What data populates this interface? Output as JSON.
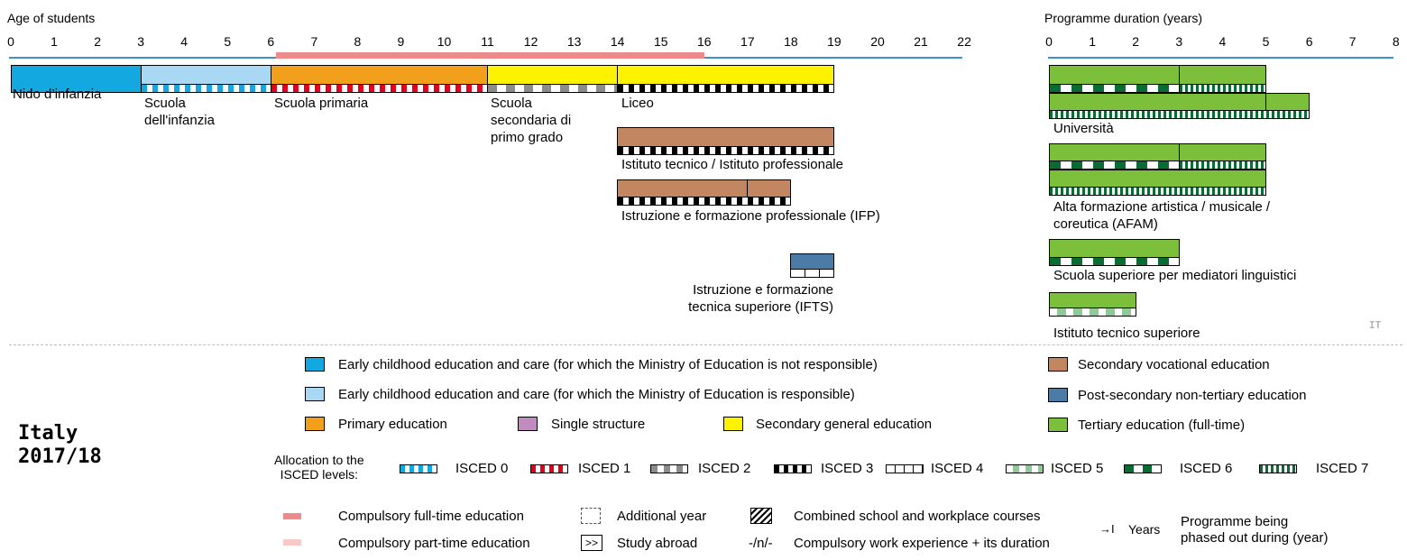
{
  "left_axis": {
    "title": "Age of students",
    "ticks": [
      "0",
      "1",
      "2",
      "3",
      "4",
      "5",
      "6",
      "7",
      "8",
      "9",
      "10",
      "11",
      "12",
      "13",
      "14",
      "15",
      "16",
      "17",
      "18",
      "19",
      "20",
      "21",
      "22"
    ]
  },
  "right_axis": {
    "title": "Programme duration (years)",
    "ticks": [
      "0",
      "1",
      "2",
      "3",
      "4",
      "5",
      "6",
      "7",
      "8"
    ]
  },
  "compulsory_range": {
    "from_age": 6,
    "to_age": 16
  },
  "programmes": {
    "nido": "Nido d’infanzia",
    "scuola_infanzia": "Scuola\ndell'infanzia",
    "primaria": "Scuola primaria",
    "secondaria_primo": "Scuola\nsecondaria di\nprimo grado",
    "liceo": "Liceo",
    "istituto_tecnico": "Istituto tecnico / Istituto professionale",
    "ifp": "Istruzione e formazione professionale (IFP)",
    "ifts": "Istruzione e formazione\ntecnica superiore (IFTS)",
    "universita": "Università",
    "afam": "Alta formazione artistica / musicale /\ncoreutica (AFAM)",
    "mediatori": "Scuola superiore per mediatori linguistici",
    "its": "Istituto tecnico superiore"
  },
  "country_code": "IT",
  "country_title": "Italy\n2017/18",
  "legend": {
    "ecec_not_responsible": "Early childhood education and care (for which the Ministry of Education is not responsible)",
    "ecec_responsible": "Early childhood education and care (for which the Ministry of Education is responsible)",
    "primary": "Primary education",
    "single_structure": "Single structure",
    "secondary_general": "Secondary general education",
    "secondary_vocational": "Secondary vocational education",
    "post_secondary": "Post-secondary non-tertiary education",
    "tertiary": "Tertiary education (full-time)",
    "allocation_label": "Allocation to the\nISCED levels:",
    "isced0": "ISCED 0",
    "isced1": "ISCED 1",
    "isced2": "ISCED 2",
    "isced3": "ISCED 3",
    "isced4": "ISCED 4",
    "isced5": "ISCED 5",
    "isced6": "ISCED 6",
    "isced7": "ISCED 7",
    "compulsory_full": "Compulsory full-time education",
    "compulsory_part": "Compulsory part-time education",
    "additional_year": "Additional year",
    "study_abroad": "Study abroad",
    "study_abroad_symbol": ">>",
    "combined": "Combined school and workplace courses",
    "work_experience_symbol": "-/n/-",
    "work_experience": "Compulsory work experience + its duration",
    "years_symbol": "→I",
    "years": "Years",
    "phased_out": "Programme being\nphased out during (year)"
  },
  "colors": {
    "ecec_not": "#13a9e0",
    "ecec_resp": "#a9d8f4",
    "primary": "#f29f1c",
    "single": "#c08bbd",
    "general": "#fff200",
    "vocational": "#c28660",
    "post_secondary": "#4b7ca8",
    "tertiary": "#7bbf3a",
    "axis": "#3d8fd1",
    "compulsory": "#ef8a8a",
    "compulsory_part": "#f8c9c9"
  }
}
